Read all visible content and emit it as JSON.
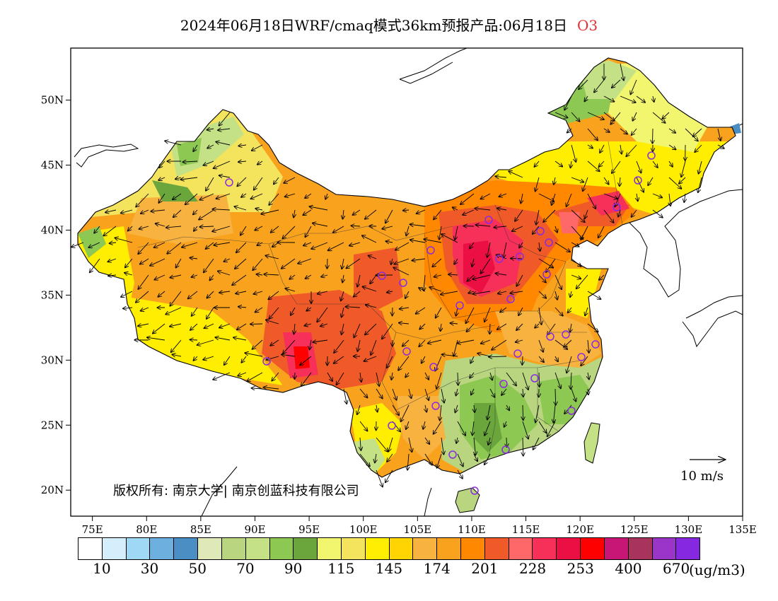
{
  "title": {
    "main": "2024年06月18日WRF/cmaq模式36km预报产品:06月18日",
    "species": "O3"
  },
  "map": {
    "lon_range": [
      73,
      135
    ],
    "lat_range": [
      18,
      54
    ],
    "x_ticks": [
      "75E",
      "80E",
      "85E",
      "90E",
      "95E",
      "100E",
      "105E",
      "110E",
      "115E",
      "120E",
      "125E",
      "130E",
      "135E"
    ],
    "y_ticks": [
      "50N",
      "45N",
      "40N",
      "35N",
      "30N",
      "25N",
      "20N"
    ],
    "copyright": "版权所有: 南京大学| 南京创蓝科技有限公司",
    "wind_reference": "10 m/s"
  },
  "legend": {
    "colors": [
      "#ffffff",
      "#d4eefb",
      "#9fd8f4",
      "#6db0e0",
      "#4a8ec4",
      "#dfe9b8",
      "#b9d57f",
      "#c5e185",
      "#8dc853",
      "#6aa63c",
      "#f2f56e",
      "#f4e35c",
      "#ffee00",
      "#ffd400",
      "#f7b240",
      "#f9a21e",
      "#ff8800",
      "#f05a28",
      "#ff6868",
      "#f63058",
      "#ec0f44",
      "#ff0000",
      "#c81677",
      "#a8345e",
      "#9b34c8",
      "#8628e0"
    ],
    "labels": [
      "10",
      "30",
      "50",
      "70",
      "90",
      "115",
      "145",
      "174",
      "201",
      "228",
      "253",
      "400",
      "670"
    ],
    "unit": "(ug/m3)"
  }
}
